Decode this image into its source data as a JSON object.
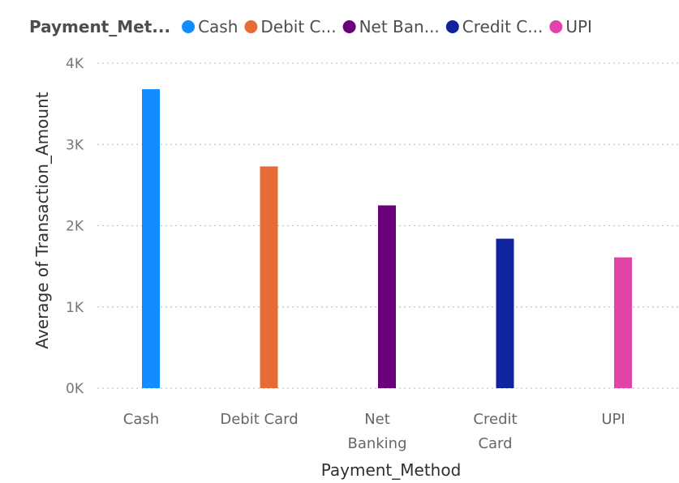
{
  "chart_data": {
    "type": "bar",
    "title": "",
    "legend": {
      "title": "Payment_Met...",
      "position": "top-left",
      "items": [
        {
          "label": "Cash",
          "color": "#118DFF"
        },
        {
          "label": "Debit C...",
          "color": "#E66C37"
        },
        {
          "label": "Net Ban...",
          "color": "#6B007B"
        },
        {
          "label": "Credit C...",
          "color": "#12239E"
        },
        {
          "label": "UPI",
          "color": "#E044A7"
        }
      ]
    },
    "categories": [
      {
        "name": "Cash",
        "lines": [
          "Cash"
        ]
      },
      {
        "name": "Debit Card",
        "lines": [
          "Debit Card"
        ]
      },
      {
        "name": "Net Banking",
        "lines": [
          "Net",
          "Banking"
        ]
      },
      {
        "name": "Credit Card",
        "lines": [
          "Credit",
          "Card"
        ]
      },
      {
        "name": "UPI",
        "lines": [
          "UPI"
        ]
      }
    ],
    "values": [
      3680,
      2730,
      2250,
      1840,
      1610
    ],
    "colors": [
      "#118DFF",
      "#E66C37",
      "#6B007B",
      "#12239E",
      "#E044A7"
    ],
    "xlabel": "Payment_Method",
    "ylabel": "Average of Transaction_Amount",
    "ylim": [
      0,
      4000
    ],
    "yticks": [
      {
        "value": 0,
        "label": "0K"
      },
      {
        "value": 1000,
        "label": "1K"
      },
      {
        "value": 2000,
        "label": "2K"
      },
      {
        "value": 3000,
        "label": "3K"
      },
      {
        "value": 4000,
        "label": "4K"
      }
    ],
    "grid": true
  }
}
